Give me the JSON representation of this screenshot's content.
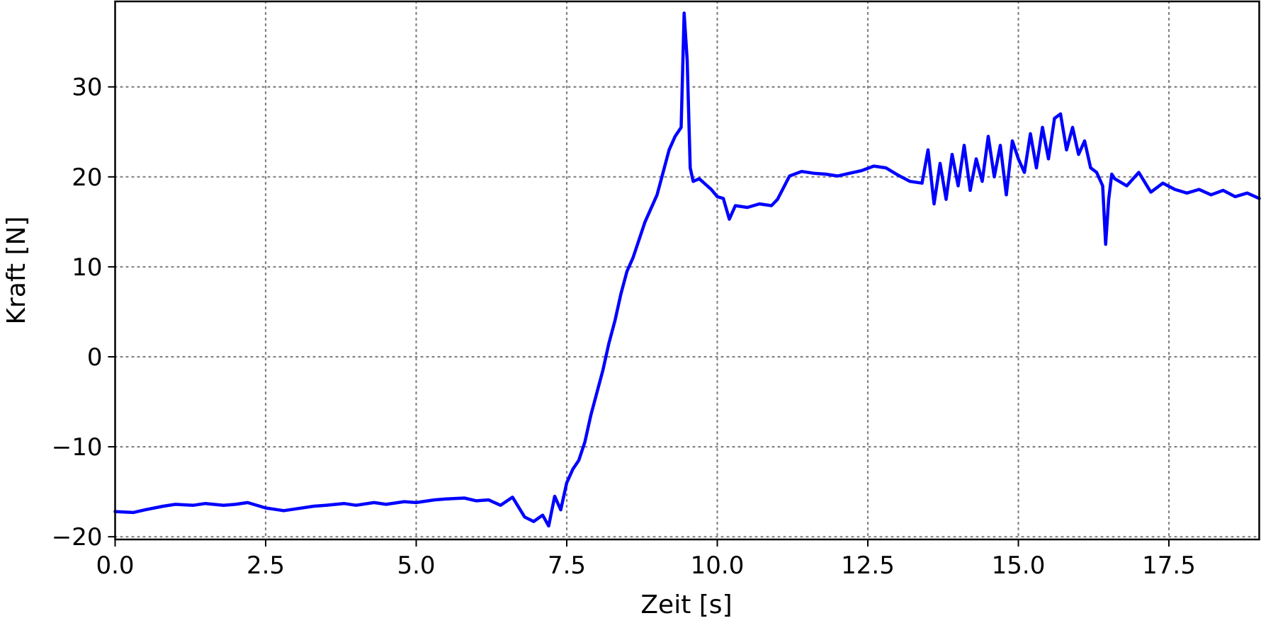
{
  "chart_data": {
    "type": "line",
    "xlabel": "Zeit [s]",
    "ylabel": "Kraft [N]",
    "xlim": [
      0,
      19.0
    ],
    "ylim": [
      -20.3,
      39.5
    ],
    "grid": true,
    "x_ticks": [
      0.0,
      2.5,
      5.0,
      7.5,
      10.0,
      12.5,
      15.0,
      17.5
    ],
    "x_tick_labels": [
      "0.0",
      "2.5",
      "5.0",
      "7.5",
      "10.0",
      "12.5",
      "15.0",
      "17.5"
    ],
    "y_ticks": [
      -20,
      -10,
      0,
      10,
      20,
      30
    ],
    "y_tick_labels": [
      "−20",
      "−10",
      "0",
      "10",
      "20",
      "30"
    ],
    "series": [
      {
        "color": "#0000ff",
        "x": [
          0.0,
          0.3,
          0.5,
          0.8,
          1.0,
          1.3,
          1.5,
          1.8,
          2.0,
          2.2,
          2.5,
          2.8,
          3.0,
          3.3,
          3.5,
          3.8,
          4.0,
          4.3,
          4.5,
          4.8,
          5.0,
          5.3,
          5.5,
          5.8,
          6.0,
          6.2,
          6.4,
          6.6,
          6.8,
          6.95,
          7.1,
          7.2,
          7.3,
          7.4,
          7.5,
          7.6,
          7.7,
          7.8,
          7.9,
          8.0,
          8.1,
          8.2,
          8.3,
          8.4,
          8.5,
          8.6,
          8.7,
          8.8,
          8.9,
          9.0,
          9.1,
          9.2,
          9.3,
          9.4,
          9.45,
          9.5,
          9.55,
          9.6,
          9.7,
          9.8,
          9.9,
          10.0,
          10.1,
          10.2,
          10.3,
          10.5,
          10.7,
          10.9,
          11.0,
          11.2,
          11.4,
          11.6,
          11.8,
          12.0,
          12.2,
          12.4,
          12.6,
          12.8,
          13.0,
          13.2,
          13.4,
          13.5,
          13.6,
          13.7,
          13.8,
          13.9,
          14.0,
          14.1,
          14.2,
          14.3,
          14.4,
          14.5,
          14.6,
          14.7,
          14.8,
          14.9,
          15.0,
          15.1,
          15.2,
          15.3,
          15.4,
          15.5,
          15.6,
          15.7,
          15.8,
          15.9,
          16.0,
          16.1,
          16.2,
          16.3,
          16.4,
          16.45,
          16.5,
          16.55,
          16.6,
          16.8,
          17.0,
          17.2,
          17.4,
          17.6,
          17.8,
          18.0,
          18.2,
          18.4,
          18.6,
          18.8,
          19.0
        ],
        "y": [
          -17.2,
          -17.3,
          -17.0,
          -16.6,
          -16.4,
          -16.5,
          -16.3,
          -16.5,
          -16.4,
          -16.2,
          -16.8,
          -17.1,
          -16.9,
          -16.6,
          -16.5,
          -16.3,
          -16.5,
          -16.2,
          -16.4,
          -16.1,
          -16.2,
          -15.9,
          -15.8,
          -15.7,
          -16.0,
          -15.9,
          -16.5,
          -15.6,
          -17.8,
          -18.3,
          -17.6,
          -18.8,
          -15.5,
          -17.0,
          -14.0,
          -12.5,
          -11.5,
          -9.5,
          -6.5,
          -4.0,
          -1.5,
          1.5,
          4.0,
          7.0,
          9.5,
          11.0,
          13.0,
          15.0,
          16.5,
          18.0,
          20.5,
          23.0,
          24.5,
          25.5,
          38.2,
          33.0,
          21.0,
          19.5,
          19.8,
          19.2,
          18.6,
          17.8,
          17.6,
          15.3,
          16.8,
          16.6,
          17.0,
          16.8,
          17.5,
          20.1,
          20.6,
          20.4,
          20.3,
          20.1,
          20.4,
          20.7,
          21.2,
          21.0,
          20.2,
          19.5,
          19.3,
          23.0,
          17.0,
          21.5,
          17.5,
          22.5,
          19.0,
          23.5,
          18.5,
          22.0,
          19.5,
          24.5,
          20.0,
          23.5,
          18.0,
          24.0,
          22.0,
          20.5,
          24.8,
          21.0,
          25.5,
          22.0,
          26.5,
          27.0,
          23.0,
          25.5,
          22.5,
          24.0,
          21.0,
          20.5,
          19.0,
          12.5,
          17.5,
          20.3,
          19.8,
          19.0,
          20.5,
          18.3,
          19.3,
          18.6,
          18.2,
          18.6,
          18.0,
          18.5,
          17.8,
          18.2,
          17.6
        ]
      }
    ]
  }
}
